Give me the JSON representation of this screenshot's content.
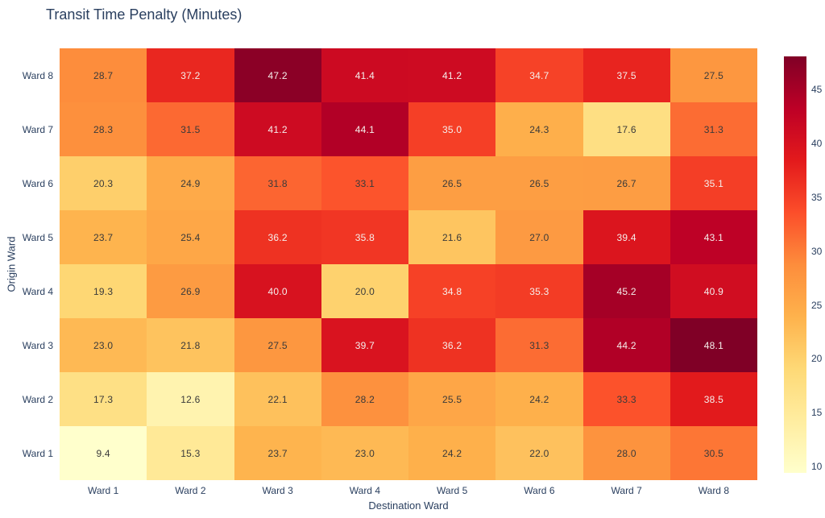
{
  "chart_data": {
    "type": "heatmap",
    "title": "Transit Time Penalty (Minutes)",
    "xlabel": "Destination Ward",
    "ylabel": "Origin Ward",
    "x_categories": [
      "Ward 1",
      "Ward 2",
      "Ward 3",
      "Ward 4",
      "Ward 5",
      "Ward 6",
      "Ward 7",
      "Ward 8"
    ],
    "y_categories_top_to_bottom": [
      "Ward 8",
      "Ward 7",
      "Ward 6",
      "Ward 5",
      "Ward 4",
      "Ward 3",
      "Ward 2",
      "Ward 1"
    ],
    "z_rows_top_to_bottom": [
      [
        28.7,
        37.2,
        47.2,
        41.4,
        41.2,
        34.7,
        37.5,
        27.5
      ],
      [
        28.3,
        31.5,
        41.2,
        44.1,
        35.0,
        24.3,
        17.6,
        31.3
      ],
      [
        20.3,
        24.9,
        31.8,
        33.1,
        26.5,
        26.5,
        26.7,
        35.1
      ],
      [
        23.7,
        25.4,
        36.2,
        35.8,
        21.6,
        27.0,
        39.4,
        43.1
      ],
      [
        19.3,
        26.9,
        40.0,
        20.0,
        34.8,
        35.3,
        45.2,
        40.9
      ],
      [
        23.0,
        21.8,
        27.5,
        39.7,
        36.2,
        31.3,
        44.2,
        48.1
      ],
      [
        17.3,
        12.6,
        22.1,
        28.2,
        25.5,
        24.2,
        33.3,
        38.5
      ],
      [
        9.4,
        15.3,
        23.7,
        23.0,
        24.2,
        22.0,
        28.0,
        30.5
      ]
    ],
    "zmin": 9.4,
    "zmax": 48.1,
    "value_format_decimals": 1,
    "colorscale_name": "YlOrRd",
    "colorscale": [
      [
        0.0,
        "#ffffcc"
      ],
      [
        0.125,
        "#ffeda0"
      ],
      [
        0.25,
        "#fed976"
      ],
      [
        0.375,
        "#feb24c"
      ],
      [
        0.5,
        "#fd8d3c"
      ],
      [
        0.625,
        "#fc4e2a"
      ],
      [
        0.75,
        "#e31a1c"
      ],
      [
        0.875,
        "#bd0026"
      ],
      [
        1.0,
        "#800026"
      ]
    ],
    "colorbar_ticks": [
      10,
      15,
      20,
      25,
      30,
      35,
      40,
      45
    ],
    "legend_position": "right-colorbar",
    "grid": false,
    "text_color_light": "#f5efec",
    "text_color_dark": "#3a3a3a",
    "axis_label_color": "#2a3f5f"
  }
}
